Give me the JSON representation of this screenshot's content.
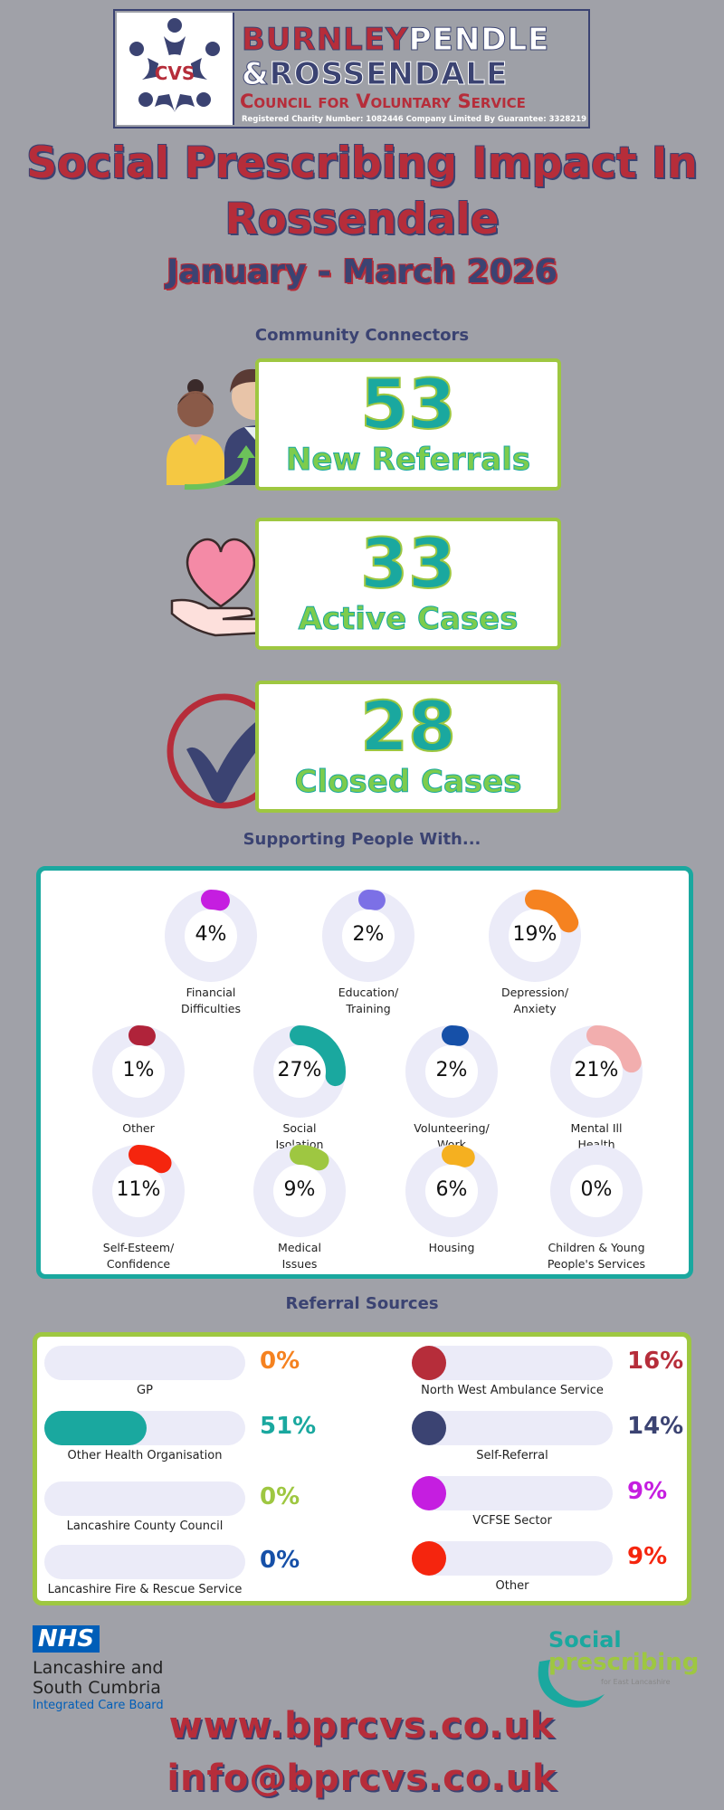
{
  "logo": {
    "emblem": "CVS",
    "line1a": "BURNLEY",
    "line1b": "PENDLE",
    "line2a": "&",
    "line2b": "ROSSENDALE",
    "line3": "Council for Voluntary Service",
    "line4": "Registered Charity Number: 1082446     Company Limited By Guarantee: 3328219"
  },
  "title": "Social Prescribing Impact In Rossendale",
  "subtitle": "January - March 2026",
  "connectors_heading": "Community Connectors",
  "stats": [
    {
      "value": "53",
      "label": "New Referrals"
    },
    {
      "value": "33",
      "label": "Active Cases"
    },
    {
      "value": "28",
      "label": "Closed Cases"
    }
  ],
  "support_heading": "Supporting People With...",
  "support": [
    {
      "pct": "4%",
      "value": 4,
      "label1": "Financial",
      "label2": "Difficulties",
      "color": "#c51ee0"
    },
    {
      "pct": "2%",
      "value": 2,
      "label1": "Education/",
      "label2": "Training",
      "color": "#7c70e6"
    },
    {
      "pct": "19%",
      "value": 19,
      "label1": "Depression/",
      "label2": "Anxiety",
      "color": "#f58220"
    },
    {
      "pct": "1%",
      "value": 1,
      "label1": "Other",
      "label2": "",
      "color": "#b0233a"
    },
    {
      "pct": "27%",
      "value": 27,
      "label1": "Social",
      "label2": "Isolation",
      "color": "#1aa89f"
    },
    {
      "pct": "2%",
      "value": 2,
      "label1": "Volunteering/",
      "label2": "Work",
      "color": "#1650a8"
    },
    {
      "pct": "21%",
      "value": 21,
      "label1": "Mental Ill",
      "label2": "Health",
      "color": "#f2aeae"
    },
    {
      "pct": "11%",
      "value": 11,
      "label1": "Self-Esteem/",
      "label2": "Confidence",
      "color": "#f5250e"
    },
    {
      "pct": "9%",
      "value": 9,
      "label1": "Medical",
      "label2": "Issues",
      "color": "#9ec741"
    },
    {
      "pct": "6%",
      "value": 6,
      "label1": "Housing",
      "label2": "",
      "color": "#f5b020"
    },
    {
      "pct": "0%",
      "value": 0,
      "label1": "Children & Young",
      "label2": "People's Services",
      "color": "#cccccc"
    }
  ],
  "referral_heading": "Referral Sources",
  "referrals_left": [
    {
      "pct": "0%",
      "value": 0,
      "label": "GP",
      "color": "#f58220"
    },
    {
      "pct": "51%",
      "value": 51,
      "label": "Other Health Organisation",
      "color": "#1aa89f"
    },
    {
      "pct": "0%",
      "value": 0,
      "label": "Lancashire County Council",
      "color": "#9ec741"
    },
    {
      "pct": "0%",
      "value": 0,
      "label": "Lancashire Fire & Rescue Service",
      "color": "#1650a8"
    }
  ],
  "referrals_right": [
    {
      "pct": "16%",
      "value": 16,
      "label": "North West Ambulance Service",
      "color": "#b62d3a"
    },
    {
      "pct": "14%",
      "value": 14,
      "label": "Self-Referral",
      "color": "#3b4372"
    },
    {
      "pct": "9%",
      "value": 9,
      "label": "VCFSE Sector",
      "color": "#c51ee0"
    },
    {
      "pct": "9%",
      "value": 9,
      "label": "Other",
      "color": "#f5250e"
    }
  ],
  "nhs": {
    "badge": "NHS",
    "line1": "Lancashire and",
    "line2": "South Cumbria",
    "line3": "Integrated Care Board"
  },
  "sp_logo": {
    "line1": "Social",
    "line2": "prescribing",
    "line3": "for East Lancashire"
  },
  "website": "www.bprcvs.co.uk",
  "email": "info@bprcvs.co.uk"
}
